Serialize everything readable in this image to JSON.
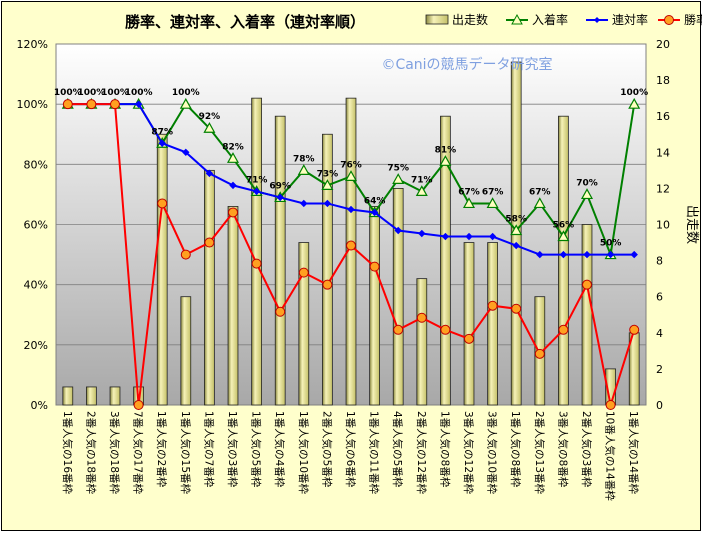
{
  "chart_data": {
    "type": "bar",
    "title": "勝率、連対率、入着率（連対率順）",
    "watermark": "©Caniの競馬データ研究室",
    "y2label": "出走数",
    "ylim": [
      0,
      1.2
    ],
    "y2lim": [
      0,
      20
    ],
    "y_ticks": [
      "0%",
      "20%",
      "40%",
      "60%",
      "80%",
      "100%",
      "120%"
    ],
    "y2_ticks": [
      "0",
      "2",
      "4",
      "6",
      "8",
      "10",
      "12",
      "14",
      "16",
      "18",
      "20"
    ],
    "legend_position": "top-right",
    "categories": [
      "1番人気の16番枠",
      "2番人気の18番枠",
      "3番人気の18番枠",
      "7番人気の17番枠",
      "1番人気の2番枠",
      "1番人気の15番枠",
      "1番人気の7番枠",
      "1番人気の3番枠",
      "1番人気の5番枠",
      "1番人気の4番枠",
      "1番人気の10番枠",
      "2番人気の5番枠",
      "1番人気の6番枠",
      "1番人気の11番枠",
      "4番人気の5番枠",
      "2番人気の12番枠",
      "1番人気の8番枠",
      "3番人気の12番枠",
      "3番人気の10番枠",
      "1番人気の8番枠",
      "2番人気の13番枠",
      "3番人気の8番枠",
      "2番人気の3番枠",
      "10番人気の14番枠",
      "1番人気の14番枠"
    ],
    "series": [
      {
        "name": "出走数",
        "type": "bar",
        "axis": "right",
        "color": "#d8d480",
        "values": [
          1,
          1,
          1,
          1,
          15,
          6,
          13,
          11,
          17,
          16,
          9,
          15,
          17,
          11,
          12,
          7,
          16,
          9,
          9,
          19,
          6,
          16,
          10,
          2,
          4
        ]
      },
      {
        "name": "入着率",
        "type": "line",
        "axis": "left",
        "color": "#008000",
        "values": [
          1.0,
          1.0,
          1.0,
          1.0,
          0.87,
          1.0,
          0.92,
          0.82,
          0.71,
          0.69,
          0.78,
          0.73,
          0.76,
          0.64,
          0.75,
          0.71,
          0.81,
          0.67,
          0.67,
          0.58,
          0.67,
          0.56,
          0.7,
          0.5,
          1.0
        ],
        "labels": [
          "100%",
          "100%",
          "100%",
          "100%",
          "87%",
          "100%",
          "92%",
          "82%",
          "71%",
          "69%",
          "78%",
          "73%",
          "76%",
          "64%",
          "75%",
          "71%",
          "81%",
          "67%",
          "67%",
          "58%",
          "67%",
          "56%",
          "70%",
          "50%",
          "100%"
        ]
      },
      {
        "name": "連対率",
        "type": "line",
        "axis": "left",
        "color": "#0000ff",
        "values": [
          1.0,
          1.0,
          1.0,
          1.0,
          0.87,
          0.84,
          0.77,
          0.73,
          0.71,
          0.69,
          0.67,
          0.67,
          0.65,
          0.64,
          0.58,
          0.57,
          0.56,
          0.56,
          0.56,
          0.53,
          0.5,
          0.5,
          0.5,
          0.5,
          0.5
        ]
      },
      {
        "name": "勝率",
        "type": "line",
        "axis": "left",
        "color": "#ff0000",
        "values": [
          1.0,
          1.0,
          1.0,
          0.0,
          0.67,
          0.5,
          0.54,
          0.64,
          0.47,
          0.31,
          0.44,
          0.4,
          0.53,
          0.46,
          0.25,
          0.29,
          0.25,
          0.22,
          0.33,
          0.32,
          0.17,
          0.25,
          0.4,
          0.0,
          0.25
        ]
      }
    ]
  }
}
